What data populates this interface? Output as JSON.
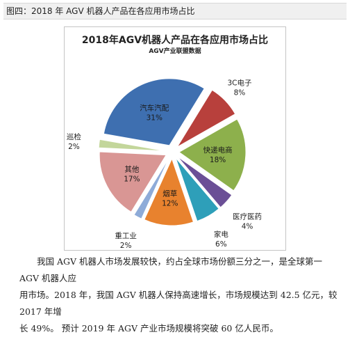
{
  "caption": {
    "text": "图四：2018 年 AGV 机器人产品在各应用市场占比"
  },
  "chart_data": {
    "type": "pie",
    "title": "2018年AGV机器人产品在各应用市场占比",
    "subtitle": "AGV产业联盟数据",
    "slices": [
      {
        "label": "汽车汽配",
        "value": 31,
        "pct": "31%",
        "color": "#3e6fb0"
      },
      {
        "label": "3C电子",
        "value": 8,
        "pct": "8%",
        "color": "#b8403c"
      },
      {
        "label": "快递电商",
        "value": 18,
        "pct": "18%",
        "color": "#8db04c"
      },
      {
        "label": "医疗医药",
        "value": 4,
        "pct": "4%",
        "color": "#6b4f96"
      },
      {
        "label": "家电",
        "value": 6,
        "pct": "6%",
        "color": "#2e9fb9"
      },
      {
        "label": "烟草",
        "value": 12,
        "pct": "12%",
        "color": "#e8822e"
      },
      {
        "label": "重工业",
        "value": 2,
        "pct": "2%",
        "color": "#8eabd8"
      },
      {
        "label": "其他",
        "value": 17,
        "pct": "17%",
        "color": "#d99694"
      },
      {
        "label": "巡检",
        "value": 2,
        "pct": "2%",
        "color": "#c3d69b"
      }
    ]
  },
  "paragraph": {
    "lines": [
      "我国 AGV 机器人市场发展较快，约占全球市场份额三分之一，是全球第一 AGV 机器人应",
      "用市场。2018 年，我国 AGV 机器人保持高速增长，市场规模达到 42.5 亿元，较 2017 年增",
      "长 49%。 预计 2019 年 AGV 产业市场规模将突破 60 亿人民币。"
    ]
  }
}
